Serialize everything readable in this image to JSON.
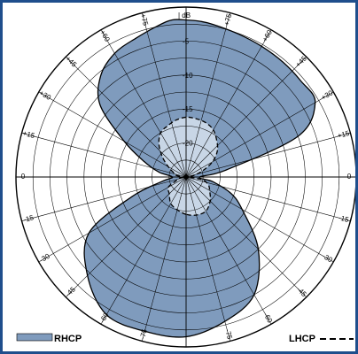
{
  "colors": {
    "frame": "#1f4e8c",
    "rhcp_fill": "#7f9bbd",
    "lhcp_fill": "#c8d6e6",
    "grid": "#000000",
    "background": "#ffffff"
  },
  "chart_data": {
    "type": "polar",
    "title": "",
    "radial_unit_label": "dB",
    "radial_ticks": [
      "-5",
      "-10",
      "-15",
      "-20"
    ],
    "angle_ticks_left": [
      "+75",
      "+60",
      "+45",
      "+30",
      "+15",
      "0",
      "-15",
      "-30",
      "-45",
      "-60",
      "-75"
    ],
    "angle_ticks_right": [
      "+75",
      "+60",
      "+45",
      "+30",
      "+15",
      "0",
      "-15",
      "-30",
      "-45",
      "-60",
      "-75"
    ],
    "radial_range_db": [
      -25,
      0
    ],
    "angle_range_deg": [
      -90,
      90
    ],
    "grid": true,
    "legend_placement": "bottom",
    "series": [
      {
        "name": "RHCP",
        "style": "solid-filled",
        "angles_deg": [
          -180,
          -165,
          -150,
          -135,
          -120,
          -110,
          -100,
          -90,
          -80,
          -70,
          -60,
          -50,
          -40,
          -30,
          -20,
          -10,
          -5,
          0,
          5,
          10,
          20,
          30,
          40,
          50,
          60,
          70,
          80,
          90,
          100,
          110,
          120,
          135,
          150,
          165,
          180
        ],
        "values_db": [
          -1.5,
          -1.5,
          -1.6,
          -4.5,
          -8.5,
          -16.5,
          -21.5,
          -23,
          -21,
          -18.5,
          -14.5,
          -8.5,
          -5.5,
          -4.0,
          -3.3,
          -2.3,
          -1.8,
          -1.9,
          -2.0,
          -2.2,
          -2.6,
          -2.8,
          -2.9,
          -3.0,
          -3.1,
          -7.5,
          -19,
          -23,
          -21,
          -18,
          -15.5,
          -10,
          -5,
          -3,
          -1.5
        ]
      },
      {
        "name": "LHCP",
        "style": "dashed-filled",
        "angles_deg": [
          -180,
          -165,
          -150,
          -135,
          -120,
          -110,
          -100,
          -90,
          -80,
          -70,
          -60,
          -50,
          -40,
          -30,
          -20,
          -10,
          0,
          10,
          20,
          30,
          40,
          50,
          60,
          70,
          80,
          90,
          100,
          110,
          120,
          135,
          150,
          165,
          180
        ],
        "values_db": [
          -19.5,
          -20,
          -20.5,
          -21.5,
          -22,
          -23.5,
          -24,
          -24.5,
          -23.5,
          -23,
          -22,
          -20.5,
          -18.8,
          -17.5,
          -17,
          -16.5,
          -16.2,
          -16.3,
          -16.5,
          -17,
          -18,
          -19,
          -20.5,
          -22.5,
          -24,
          -24.5,
          -22.5,
          -21.5,
          -21,
          -20,
          -19.2,
          -19.2,
          -19.5
        ]
      }
    ]
  },
  "legend": {
    "rhcp_label": "RHCP",
    "lhcp_label": "LHCP"
  }
}
